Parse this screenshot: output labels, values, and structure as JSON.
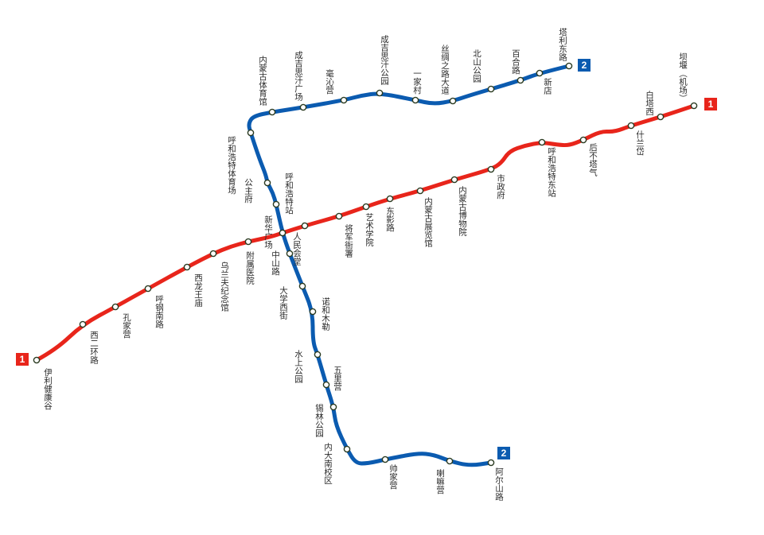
{
  "colors": {
    "line1": "#e8251b",
    "line2": "#0b5bb0",
    "station_fill": "#ffffff",
    "station_stroke": "#2a3a20"
  },
  "line1": {
    "badge": "1",
    "stations": [
      "伊利健康谷",
      "西二环路",
      "孔家营",
      "呼钢南路",
      "西龙王庙",
      "乌兰夫纪念馆",
      "附属医院",
      "新华广场",
      "人民会堂",
      "将军衙署",
      "艺术学院",
      "东影路",
      "内蒙古展览馆",
      "内蒙古博物院",
      "市政府",
      "呼和浩特东站",
      "后不塔气",
      "什兰岱",
      "白塔西",
      "坝堰（机场）"
    ]
  },
  "line2": {
    "badge": "2",
    "stations": [
      "塔利东路",
      "新店",
      "百合路",
      "北山公园",
      "丝绸之路大道",
      "一家村",
      "成吉思汗公园",
      "毫沁营",
      "成吉思汗广场",
      "内蒙古体育馆",
      "呼和浩特体育场",
      "公主府",
      "呼和浩特站",
      "新华广场",
      "中山路",
      "大学西街",
      "诺和木勒",
      "水上公园",
      "五里营",
      "锡林公园",
      "内大南校区",
      "帅家营",
      "喇嘛营",
      "阿尔山路"
    ]
  }
}
